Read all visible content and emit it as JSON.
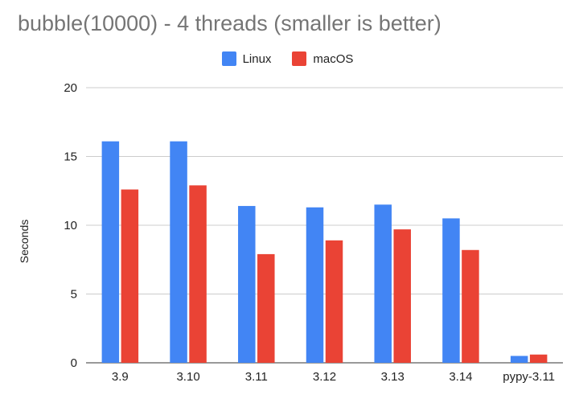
{
  "chart_data": {
    "type": "bar",
    "title": "bubble(10000) - 4 threads (smaller is better)",
    "xlabel": "",
    "ylabel": "Seconds",
    "ylim": [
      0,
      20
    ],
    "yticks": [
      0,
      5,
      10,
      15,
      20
    ],
    "grid": true,
    "legend_position": "top",
    "categories": [
      "3.9",
      "3.10",
      "3.11",
      "3.12",
      "3.13",
      "3.14",
      "pypy-3.11"
    ],
    "series": [
      {
        "name": "Linux",
        "color": "#4285f4",
        "values": [
          16.1,
          16.1,
          11.4,
          11.3,
          11.5,
          10.5,
          0.5
        ]
      },
      {
        "name": "macOS",
        "color": "#ea4335",
        "values": [
          12.6,
          12.9,
          7.9,
          8.9,
          9.7,
          8.2,
          0.6
        ]
      }
    ]
  }
}
